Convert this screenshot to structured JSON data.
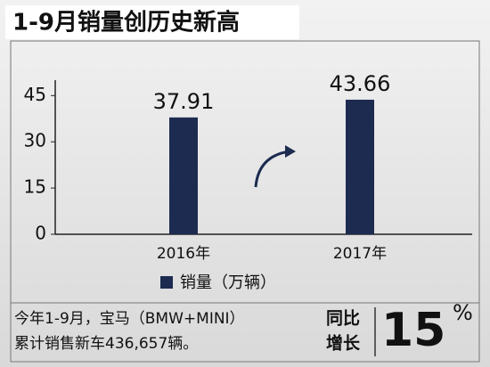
{
  "chart_data": {
    "type": "bar",
    "title": "1-9月销量创历史新高",
    "categories": [
      "2016年",
      "2017年"
    ],
    "series": [
      {
        "name": "销量（万辆）",
        "color": "#1c2b4f",
        "values": [
          37.91,
          43.66
        ]
      }
    ],
    "ylim": [
      0,
      50
    ],
    "yticks": [
      0,
      15,
      30,
      45
    ],
    "grid": false
  },
  "summary": {
    "lines": [
      "今年1-9月，宝马（BMW+MINI）",
      "累计销售新车436,657辆。"
    ],
    "growth_label": [
      "同比",
      "增长"
    ],
    "growth_value": "15",
    "growth_unit": "%"
  }
}
